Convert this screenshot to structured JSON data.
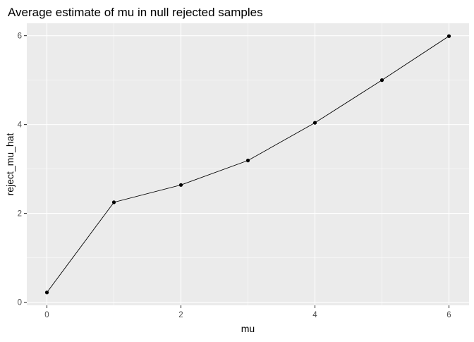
{
  "chart_data": {
    "type": "line",
    "title": "Average estimate of mu in null rejected samples",
    "xlabel": "mu",
    "ylabel": "reject_mu_hat",
    "x": [
      0,
      1,
      2,
      3,
      4,
      5,
      6
    ],
    "y": [
      0.22,
      2.25,
      2.64,
      3.19,
      4.04,
      5.0,
      5.99
    ],
    "xlim": [
      -0.3,
      6.3
    ],
    "ylim": [
      -0.07,
      6.28
    ],
    "x_ticks": [
      "0",
      "2",
      "4",
      "6"
    ],
    "y_ticks": [
      "0",
      "2",
      "4",
      "6"
    ],
    "grid": true,
    "legend": "none",
    "colors": {
      "panel": "#ebebeb",
      "grid": "#ffffff",
      "line": "#000000",
      "point": "#000000"
    }
  }
}
